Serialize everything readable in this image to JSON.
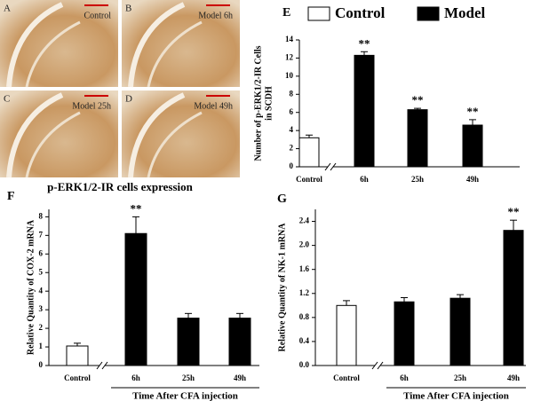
{
  "micrographs": {
    "caption": "p-ERK1/2-IR cells expression",
    "panels": [
      {
        "letter": "A",
        "label": "Control"
      },
      {
        "letter": "B",
        "label": "Model 6h"
      },
      {
        "letter": "C",
        "label": "Model 25h"
      },
      {
        "letter": "D",
        "label": "Model 49h"
      }
    ]
  },
  "chart_data": [
    {
      "type": "bar",
      "letter": "E",
      "ylabel": [
        "Number of p-ERK1/2-IR Cells",
        "in SCDH"
      ],
      "legend": [
        {
          "name": "Control",
          "color": "#ffffff"
        },
        {
          "name": "Model",
          "color": "#000000"
        }
      ],
      "categories": [
        "Control",
        "6h",
        "25h",
        "49h"
      ],
      "values": [
        3.2,
        12.3,
        6.3,
        4.6
      ],
      "errors": [
        0.3,
        0.4,
        0.15,
        0.6
      ],
      "colors": [
        "#ffffff",
        "#000000",
        "#000000",
        "#000000"
      ],
      "annotations": [
        {
          "text": "**",
          "category": "6h"
        },
        {
          "text": "**",
          "category": "25h"
        },
        {
          "text": "**",
          "category": "49h"
        }
      ],
      "ylim": [
        0,
        14
      ],
      "yticks": [
        0,
        2,
        4,
        6,
        8,
        10,
        12,
        14
      ]
    },
    {
      "type": "bar",
      "letter": "F",
      "ylabel": [
        "Relative Quantity of COX-2 mRNA"
      ],
      "xlabel": "Time After CFA injection",
      "categories": [
        "Control",
        "6h",
        "25h",
        "49h"
      ],
      "values": [
        1.05,
        7.1,
        2.55,
        2.55
      ],
      "errors": [
        0.15,
        0.9,
        0.25,
        0.25
      ],
      "colors": [
        "#ffffff",
        "#000000",
        "#000000",
        "#000000"
      ],
      "annotations": [
        {
          "text": "**",
          "category": "6h"
        }
      ],
      "ylim": [
        0,
        8.4
      ],
      "yticks": [
        0,
        1,
        2,
        3,
        4,
        5,
        6,
        7,
        8
      ]
    },
    {
      "type": "bar",
      "letter": "G",
      "ylabel": [
        "Relative Quantity of NK-1 mRNA"
      ],
      "xlabel": "Time After CFA injection",
      "categories": [
        "Control",
        "6h",
        "25h",
        "49h"
      ],
      "values": [
        1.0,
        1.06,
        1.12,
        2.25
      ],
      "errors": [
        0.08,
        0.07,
        0.06,
        0.17
      ],
      "colors": [
        "#ffffff",
        "#000000",
        "#000000",
        "#000000"
      ],
      "annotations": [
        {
          "text": "**",
          "category": "49h"
        }
      ],
      "ylim": [
        0,
        2.6
      ],
      "yticks": [
        {
          "value": 0,
          "label": "0.0"
        },
        0.4,
        0.8,
        1.2,
        1.6,
        {
          "value": 2,
          "label": "2.0"
        },
        2.4
      ]
    }
  ]
}
